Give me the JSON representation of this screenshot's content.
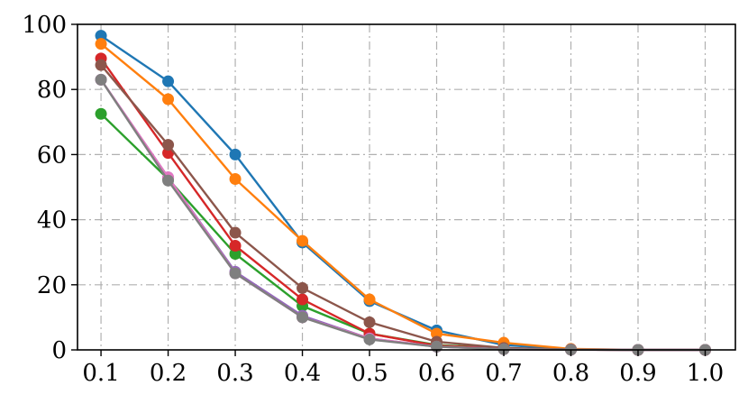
{
  "chart_data": {
    "type": "line",
    "title": "",
    "xlabel": "",
    "ylabel": "",
    "x": [
      0.1,
      0.2,
      0.3,
      0.4,
      0.5,
      0.6,
      0.7,
      0.8,
      0.9,
      1.0
    ],
    "xtick_labels": [
      "0.1",
      "0.2",
      "0.3",
      "0.4",
      "0.5",
      "0.6",
      "0.7",
      "0.8",
      "0.9",
      "1.0"
    ],
    "yticks": [
      0,
      20,
      40,
      60,
      80,
      100
    ],
    "ytick_labels": [
      "0",
      "20",
      "40",
      "60",
      "80",
      "100"
    ],
    "xlim": [
      0.065,
      1.045
    ],
    "ylim": [
      0,
      100
    ],
    "grid": true,
    "legend": "none",
    "series": [
      {
        "color": "#1f77b4",
        "values": [
          96.5,
          82.5,
          60,
          33,
          15,
          6,
          1.5,
          0.2,
          0,
          0
        ]
      },
      {
        "color": "#ff7f0e",
        "values": [
          94,
          77,
          52.5,
          33.5,
          15.5,
          5,
          2.2,
          0.3,
          0,
          0
        ]
      },
      {
        "color": "#2ca02c",
        "values": [
          72.5,
          52.5,
          29.5,
          13.5,
          5,
          1.5,
          0.5,
          0.1,
          0,
          0
        ]
      },
      {
        "color": "#d62728",
        "values": [
          89.5,
          60.5,
          32,
          15.5,
          5,
          1.3,
          0.4,
          0.1,
          0,
          0
        ]
      },
      {
        "color": "#9467bd",
        "values": [
          83,
          53,
          24,
          10.5,
          3.5,
          1,
          0.3,
          0.1,
          0,
          0
        ]
      },
      {
        "color": "#8c564b",
        "values": [
          87.5,
          63,
          36,
          19,
          8.5,
          2.5,
          0.6,
          0.1,
          0,
          0
        ]
      },
      {
        "color": "#e377c2",
        "values": [
          83,
          53,
          23.5,
          10,
          3.5,
          1,
          0.2,
          0.05,
          0,
          0
        ]
      },
      {
        "color": "#7f7f7f",
        "values": [
          83,
          52,
          23.5,
          10,
          3.2,
          1,
          0.2,
          0.05,
          0,
          0
        ]
      }
    ]
  }
}
